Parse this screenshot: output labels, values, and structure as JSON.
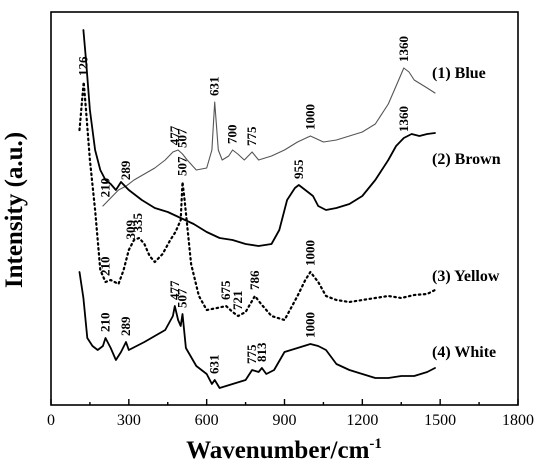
{
  "chart_data": {
    "type": "line",
    "xlabel": "Wavenumber/cm",
    "xlabel_superscript": "-1",
    "ylabel": "Intensity (a.u.)",
    "xlim": [
      0,
      1800
    ],
    "x_ticks": [
      "0",
      "300",
      "600",
      "900",
      "1200",
      "1500",
      "1800"
    ],
    "series": [
      {
        "name": "(1) Blue",
        "style": "thin",
        "color": "#555555",
        "x": [
          200,
          230,
          260,
          290,
          320,
          360,
          400,
          440,
          470,
          490,
          507,
          525,
          560,
          600,
          620,
          631,
          645,
          660,
          685,
          700,
          720,
          745,
          775,
          800,
          850,
          900,
          950,
          1000,
          1050,
          1100,
          1150,
          1200,
          1250,
          1300,
          1330,
          1360,
          1380,
          1400,
          1450,
          1480
        ],
        "y": [
          206,
          198,
          190,
          186,
          180,
          174,
          168,
          160,
          152,
          150,
          154,
          160,
          170,
          168,
          150,
          102,
          150,
          160,
          156,
          150,
          154,
          160,
          152,
          160,
          156,
          150,
          142,
          136,
          142,
          140,
          136,
          132,
          124,
          104,
          86,
          68,
          72,
          80,
          88,
          93
        ],
        "peaks": [
          {
            "label": "210",
            "x": 210
          },
          {
            "label": "289",
            "x": 289
          },
          {
            "label": "477",
            "x": 477
          },
          {
            "label": "507",
            "x": 507
          },
          {
            "label": "631",
            "x": 631
          },
          {
            "label": "700",
            "x": 700
          },
          {
            "label": "775",
            "x": 775
          },
          {
            "label": "1000",
            "x": 1000
          },
          {
            "label": "1360",
            "x": 1360
          }
        ]
      },
      {
        "name": "(2) Brown",
        "style": "thick",
        "color": "#000000",
        "x": [
          125,
          135,
          150,
          170,
          190,
          210,
          230,
          250,
          270,
          300,
          350,
          400,
          450,
          500,
          550,
          600,
          650,
          700,
          750,
          800,
          850,
          880,
          910,
          940,
          955,
          980,
          1010,
          1030,
          1060,
          1100,
          1150,
          1200,
          1250,
          1300,
          1330,
          1360,
          1390,
          1420,
          1450,
          1480
        ],
        "y": [
          30,
          60,
          110,
          150,
          170,
          180,
          184,
          190,
          182,
          190,
          200,
          208,
          212,
          218,
          224,
          232,
          238,
          240,
          244,
          246,
          244,
          230,
          200,
          188,
          185,
          190,
          196,
          206,
          210,
          208,
          204,
          196,
          180,
          160,
          146,
          138,
          134,
          136,
          134,
          133
        ],
        "peaks": [
          {
            "label": "955",
            "x": 955
          },
          {
            "label": "1360",
            "x": 1360
          }
        ]
      },
      {
        "name": "(3) Yellow",
        "style": "dotted",
        "color": "#000000",
        "x": [
          110,
          120,
          126,
          135,
          150,
          170,
          190,
          210,
          230,
          260,
          280,
          300,
          320,
          340,
          360,
          380,
          400,
          430,
          460,
          480,
          500,
          507,
          515,
          540,
          570,
          600,
          640,
          675,
          700,
          721,
          750,
          786,
          810,
          850,
          900,
          950,
          980,
          1000,
          1030,
          1060,
          1100,
          1150,
          1200,
          1250,
          1300,
          1350,
          1400,
          1450,
          1480
        ],
        "y": [
          130,
          100,
          82,
          110,
          160,
          210,
          270,
          282,
          280,
          284,
          270,
          250,
          240,
          238,
          244,
          256,
          262,
          254,
          240,
          232,
          220,
          182,
          200,
          264,
          296,
          310,
          308,
          306,
          312,
          316,
          312,
          296,
          304,
          316,
          320,
          296,
          280,
          272,
          282,
          296,
          300,
          302,
          300,
          298,
          296,
          298,
          295,
          294,
          290
        ],
        "peaks": [
          {
            "label": "126",
            "x": 126
          },
          {
            "label": "210",
            "x": 210
          },
          {
            "label": "309",
            "x": 309
          },
          {
            "label": "335",
            "x": 335
          },
          {
            "label": "507",
            "x": 507
          },
          {
            "label": "675",
            "x": 675
          },
          {
            "label": "721",
            "x": 721
          },
          {
            "label": "786",
            "x": 786
          },
          {
            "label": "1000",
            "x": 1000
          }
        ]
      },
      {
        "name": "(4) White",
        "style": "thick",
        "color": "#000000",
        "x": [
          110,
          125,
          140,
          160,
          180,
          200,
          210,
          230,
          250,
          270,
          289,
          300,
          330,
          360,
          400,
          440,
          470,
          477,
          490,
          500,
          507,
          520,
          560,
          600,
          620,
          631,
          650,
          700,
          750,
          775,
          800,
          813,
          830,
          860,
          900,
          950,
          1000,
          1030,
          1060,
          1100,
          1150,
          1200,
          1250,
          1300,
          1350,
          1400,
          1450,
          1480
        ],
        "y": [
          272,
          298,
          338,
          346,
          350,
          346,
          338,
          348,
          360,
          352,
          342,
          350,
          346,
          342,
          336,
          330,
          316,
          306,
          320,
          326,
          314,
          348,
          366,
          374,
          384,
          380,
          388,
          384,
          380,
          370,
          372,
          368,
          374,
          370,
          352,
          348,
          344,
          346,
          350,
          364,
          370,
          374,
          378,
          378,
          376,
          376,
          372,
          368
        ],
        "peaks": [
          {
            "label": "210",
            "x": 210
          },
          {
            "label": "289",
            "x": 289
          },
          {
            "label": "477",
            "x": 477
          },
          {
            "label": "507",
            "x": 507
          },
          {
            "label": "631",
            "x": 631
          },
          {
            "label": "775",
            "x": 775
          },
          {
            "label": "813",
            "x": 813
          },
          {
            "label": "1000",
            "x": 1000
          }
        ]
      }
    ]
  }
}
